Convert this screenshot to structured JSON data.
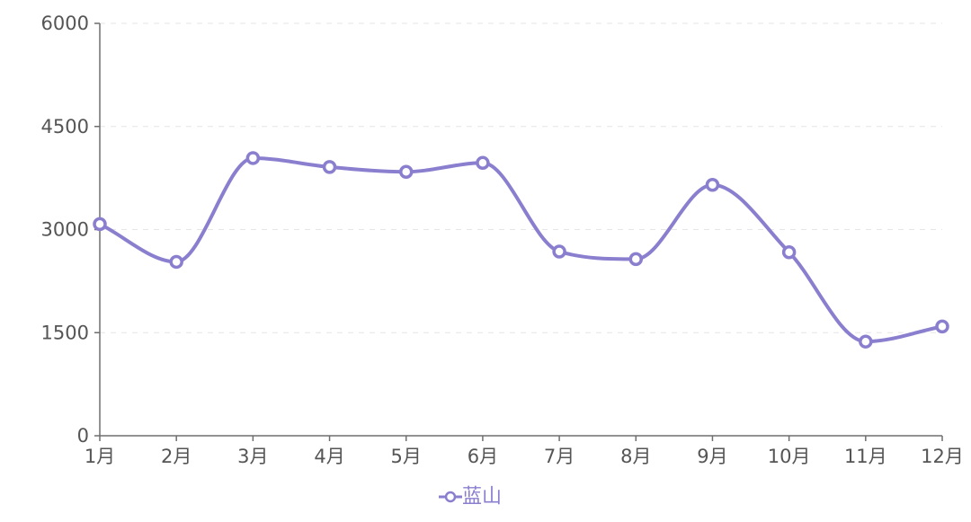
{
  "chart_data": {
    "type": "line",
    "title": "",
    "xlabel": "",
    "ylabel": "",
    "categories": [
      "1月",
      "2月",
      "3月",
      "4月",
      "5月",
      "6月",
      "7月",
      "8月",
      "9月",
      "10月",
      "11月",
      "12月"
    ],
    "y_ticks": [
      "0",
      "1500",
      "3000",
      "4500",
      "6000"
    ],
    "ylim": [
      0,
      6000
    ],
    "grid": "horizontal-dashed",
    "smooth": true,
    "legend": "bottom-center",
    "series": [
      {
        "name": "蓝山",
        "color": "#8a7fcf",
        "values": [
          3080,
          2530,
          4040,
          3910,
          3840,
          3970,
          2680,
          2570,
          3650,
          2670,
          1370,
          1590
        ]
      }
    ]
  }
}
